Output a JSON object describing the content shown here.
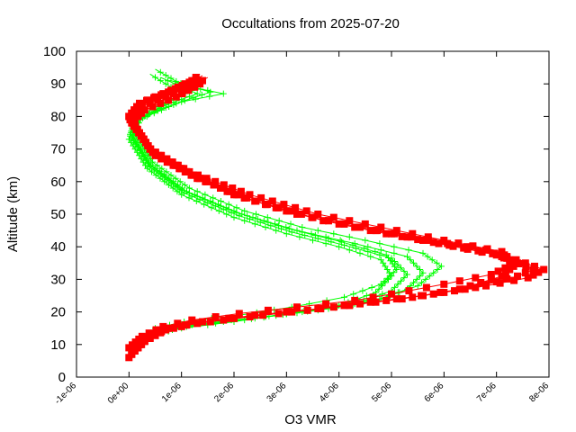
{
  "chart_data": {
    "type": "line",
    "title": "Occultations from 2025-07-20",
    "xlabel": "O3 VMR",
    "ylabel": "Altitude (km)",
    "xlim": [
      -1e-06,
      8e-06
    ],
    "ylim": [
      0,
      100
    ],
    "xticks": [
      "-1e-06",
      "0e+00",
      "1e-06",
      "2e-06",
      "3e-06",
      "4e-06",
      "5e-06",
      "6e-06",
      "7e-06",
      "8e-06"
    ],
    "yticks": [
      "0",
      "10",
      "20",
      "30",
      "40",
      "50",
      "60",
      "70",
      "80",
      "90",
      "100"
    ],
    "grid": false,
    "legend": "none",
    "series": [
      {
        "color": "#ff0000",
        "marker": "filled-square",
        "profiles": [
          {
            "x": [
              0.0,
              2e-07,
              6e-07,
              1.1e-06,
              2e-06,
              3.1e-06,
              4.2e-06,
              5.2e-06,
              6.3e-06,
              7.1e-06,
              7.4e-06,
              6.8e-06,
              5.7e-06,
              4.4e-06,
              3.2e-06,
              2e-06,
              1.1e-06,
              4e-07,
              0.0,
              2e-07,
              8e-07,
              1.2e-06,
              1.35e-06
            ],
            "y": [
              6,
              10,
              14,
              16,
              18,
              20,
              22,
              24,
              27,
              31,
              35,
              39,
              42,
              46,
              50,
              56,
              63,
              70,
              80,
              84,
              88,
              91,
              93
            ]
          },
          {
            "x": [
              5e-08,
              3e-07,
              7e-07,
              1.3e-06,
              2.3e-06,
              3.4e-06,
              4.4e-06,
              5.4e-06,
              6.6e-06,
              7.4e-06,
              7.7e-06,
              7e-06,
              5.9e-06,
              4.7e-06,
              3.5e-06,
              2.2e-06,
              1.2e-06,
              4.5e-07,
              2e-08,
              2.5e-07,
              8.5e-07,
              1.3e-06,
              1.5e-06
            ],
            "y": [
              7,
              11,
              14.5,
              16.5,
              18.5,
              20.5,
              22.5,
              24.5,
              27.5,
              31,
              33,
              37.5,
              41,
              45,
              49,
              55,
              62,
              69,
              79,
              83,
              87,
              90,
              92
            ]
          },
          {
            "x": [
              1e-07,
              3.5e-07,
              7.5e-07,
              1.4e-06,
              2.4e-06,
              3.6e-06,
              4.6e-06,
              5.6e-06,
              6.8e-06,
              7.6e-06,
              7.9e-06,
              7.2e-06,
              6.1e-06,
              4.9e-06,
              3.7e-06,
              2.4e-06,
              1.3e-06,
              5e-07,
              5e-08,
              3e-07,
              9e-07,
              1.25e-06,
              1.45e-06
            ],
            "y": [
              8,
              12,
              15,
              17,
              19,
              21,
              23,
              25,
              28,
              30.5,
              33,
              37,
              40.5,
              44,
              48,
              54,
              61,
              68,
              78,
              82,
              86,
              89,
              91
            ]
          },
          {
            "x": [
              0.0,
              2.5e-07,
              6.5e-07,
              1.2e-06,
              2.1e-06,
              3.2e-06,
              4.3e-06,
              5e-06,
              6e-06,
              6.9e-06,
              7.3e-06,
              7.1e-06,
              6e-06,
              4.8e-06,
              3.6e-06,
              2.3e-06,
              1.15e-06,
              4e-07,
              0.0,
              2e-07,
              7.5e-07,
              1.15e-06,
              1.4e-06
            ],
            "y": [
              9,
              12.5,
              15.5,
              17.5,
              19.5,
              21.5,
              23.5,
              25.5,
              28.5,
              31.5,
              34.5,
              38.5,
              42,
              46,
              50,
              56,
              63,
              70,
              80,
              84,
              87.5,
              90.5,
              92.5
            ]
          }
        ]
      },
      {
        "color": "#00ff00",
        "marker": "plus",
        "profiles": [
          {
            "x": [
              5e-07,
              1e-06,
              2e-06,
              3e-06,
              4e-06,
              4.7e-06,
              5e-06,
              4.8e-06,
              4e-06,
              3e-06,
              2e-06,
              1e-06,
              3.5e-07,
              0.0,
              1e-07,
              6e-07,
              1e-06,
              4e-07
            ],
            "y": [
              13,
              15,
              17,
              19.5,
              22,
              26,
              31,
              36,
              40,
              44,
              49,
              56,
              64,
              73,
              78,
              83,
              87,
              93
            ]
          },
          {
            "x": [
              5.5e-07,
              1.1e-06,
              2.2e-06,
              3.3e-06,
              4.3e-06,
              5e-06,
              5.3e-06,
              5e-06,
              4.1e-06,
              3.1e-06,
              2.1e-06,
              1.05e-06,
              4e-07,
              5e-08,
              1.5e-07,
              7e-07,
              1.3e-06,
              6e-07
            ],
            "y": [
              13.5,
              15.5,
              17.5,
              20,
              22.5,
              26.5,
              31.5,
              36.5,
              40.5,
              44.5,
              49.5,
              56.5,
              64.5,
              73.5,
              78.5,
              83.5,
              87,
              92
            ]
          },
          {
            "x": [
              6e-07,
              1.2e-06,
              2.4e-06,
              3.6e-06,
              4.6e-06,
              5.3e-06,
              5.6e-06,
              5.3e-06,
              4.3e-06,
              3.2e-06,
              2.15e-06,
              1.1e-06,
              4.2e-07,
              8e-08,
              2e-07,
              9e-07,
              1.55e-06,
              8e-07
            ],
            "y": [
              14,
              16,
              18,
              20.5,
              23,
              27,
              32,
              37,
              41,
              45,
              50,
              57,
              65,
              74,
              79,
              84,
              87.5,
              91
            ]
          },
          {
            "x": [
              6.5e-07,
              1.3e-06,
              2.6e-06,
              3.8e-06,
              4.8e-06,
              5.5e-06,
              5.95e-06,
              5.6e-06,
              4.5e-06,
              3.3e-06,
              2.2e-06,
              1.15e-06,
              4.5e-07,
              1e-07,
              2.5e-07,
              1e-06,
              1.8e-06,
              9e-07
            ],
            "y": [
              14.5,
              16.5,
              18.5,
              21,
              24,
              28,
              34,
              38,
              42,
              46,
              51,
              58,
              66,
              75,
              80,
              84.5,
              87,
              90
            ]
          },
          {
            "x": [
              5e-07,
              1.05e-06,
              2.1e-06,
              3.1e-06,
              4.1e-06,
              4.8e-06,
              5.1e-06,
              4.9e-06,
              4.05e-06,
              3.05e-06,
              2.05e-06,
              1e-06,
              3.8e-07,
              2e-08,
              1.2e-07,
              6.5e-07,
              1.2e-06,
              5e-07
            ],
            "y": [
              15,
              17,
              19,
              21.5,
              24.5,
              28.5,
              33,
              37.5,
              41.5,
              45.5,
              50.5,
              57.5,
              65.5,
              74.5,
              79.5,
              84,
              88,
              94.5
            ]
          }
        ]
      }
    ]
  }
}
